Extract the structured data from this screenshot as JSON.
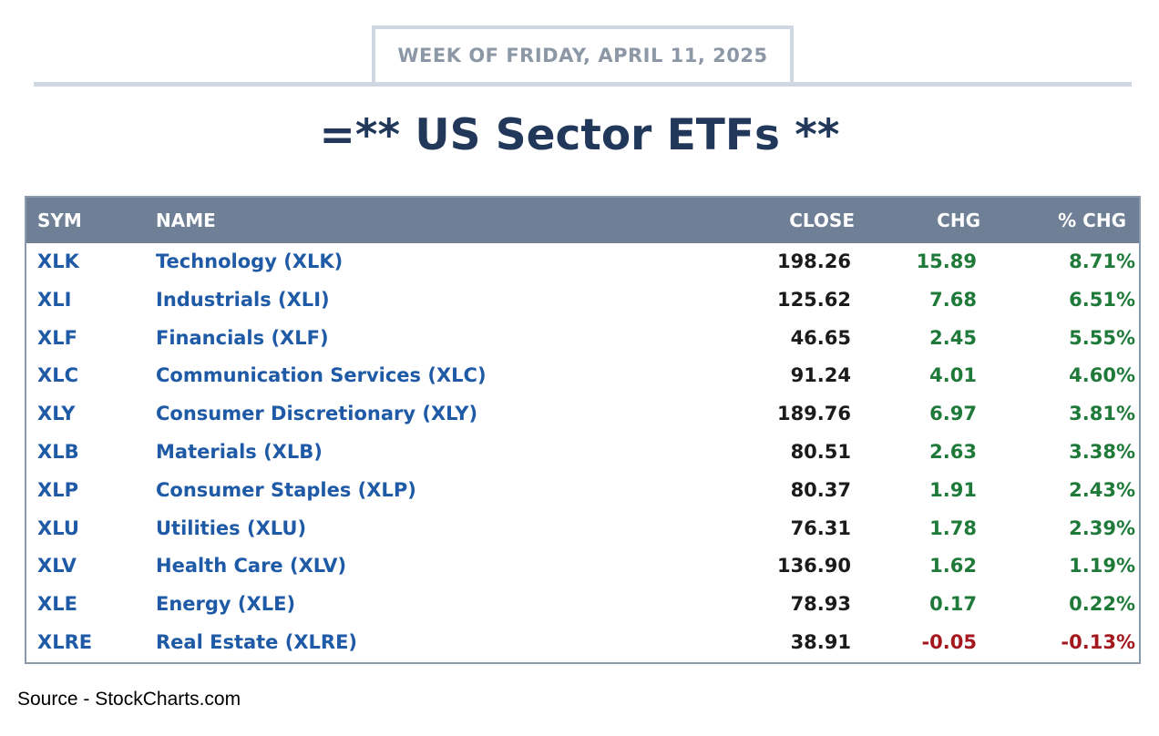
{
  "header": {
    "week_label": "WEEK OF FRIDAY, APRIL 11, 2025",
    "title": "=** US Sector ETFs **"
  },
  "table": {
    "columns": [
      "SYM",
      "NAME",
      "CLOSE",
      "CHG",
      "% CHG"
    ],
    "rows": [
      {
        "sym": "XLK",
        "name": "Technology (XLK)",
        "close": "198.26",
        "chg": "15.89",
        "pct": "8.71%",
        "direction": "up"
      },
      {
        "sym": "XLI",
        "name": "Industrials (XLI)",
        "close": "125.62",
        "chg": "7.68",
        "pct": "6.51%",
        "direction": "up"
      },
      {
        "sym": "XLF",
        "name": "Financials (XLF)",
        "close": "46.65",
        "chg": "2.45",
        "pct": "5.55%",
        "direction": "up"
      },
      {
        "sym": "XLC",
        "name": "Communication Services (XLC)",
        "close": "91.24",
        "chg": "4.01",
        "pct": "4.60%",
        "direction": "up"
      },
      {
        "sym": "XLY",
        "name": "Consumer Discretionary (XLY)",
        "close": "189.76",
        "chg": "6.97",
        "pct": "3.81%",
        "direction": "up"
      },
      {
        "sym": "XLB",
        "name": "Materials (XLB)",
        "close": "80.51",
        "chg": "2.63",
        "pct": "3.38%",
        "direction": "up"
      },
      {
        "sym": "XLP",
        "name": "Consumer Staples (XLP)",
        "close": "80.37",
        "chg": "1.91",
        "pct": "2.43%",
        "direction": "up"
      },
      {
        "sym": "XLU",
        "name": "Utilities (XLU)",
        "close": "76.31",
        "chg": "1.78",
        "pct": "2.39%",
        "direction": "up"
      },
      {
        "sym": "XLV",
        "name": "Health Care (XLV)",
        "close": "136.90",
        "chg": "1.62",
        "pct": "1.19%",
        "direction": "up"
      },
      {
        "sym": "XLE",
        "name": "Energy (XLE)",
        "close": "78.93",
        "chg": "0.17",
        "pct": "0.22%",
        "direction": "up"
      },
      {
        "sym": "XLRE",
        "name": "Real Estate (XLRE)",
        "close": "38.91",
        "chg": "-0.05",
        "pct": "-0.13%",
        "direction": "down"
      }
    ]
  },
  "colors": {
    "positive": "#1f7a3a",
    "negative": "#a3171d",
    "link": "#1f5aa6",
    "header_bg": "#6e7f96",
    "title": "#22385a"
  },
  "footer": {
    "source": "Source - StockCharts.com"
  }
}
